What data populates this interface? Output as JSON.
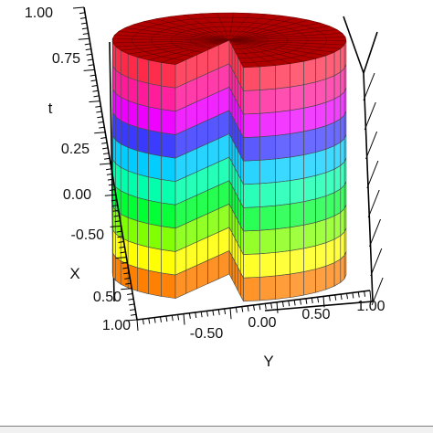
{
  "chart_data": {
    "type": "surface3d",
    "title": "",
    "shape": "cylinder with a wedge cut out, colored by height t",
    "axes": {
      "x": {
        "label": "X",
        "ticks": [
          "0.50",
          "1.00"
        ]
      },
      "y": {
        "label": "Y",
        "ticks": [
          "-0.50",
          "0.00",
          "0.50",
          "1.00"
        ]
      },
      "t": {
        "label": "t",
        "ticks": [
          "-0.50",
          "0.00",
          "0.25",
          "0.75",
          "1.00"
        ]
      }
    },
    "t_range": [
      -1.0,
      1.0
    ],
    "radius": 1.0,
    "wedge_removed_deg": 60,
    "bands": [
      {
        "t_from": -1.0,
        "t_to": -0.8,
        "color": "#ff7f00"
      },
      {
        "t_from": -0.8,
        "t_to": -0.6,
        "color": "#ffff00"
      },
      {
        "t_from": -0.6,
        "t_to": -0.4,
        "color": "#7fff00"
      },
      {
        "t_from": -0.4,
        "t_to": -0.2,
        "color": "#00ff33"
      },
      {
        "t_from": -0.2,
        "t_to": 0.0,
        "color": "#00ffaa"
      },
      {
        "t_from": 0.0,
        "t_to": 0.2,
        "color": "#00ccff"
      },
      {
        "t_from": 0.2,
        "t_to": 0.4,
        "color": "#3a3aff"
      },
      {
        "t_from": 0.4,
        "t_to": 0.6,
        "color": "#ee00ff"
      },
      {
        "t_from": 0.6,
        "t_to": 0.8,
        "color": "#ff1a9a"
      },
      {
        "t_from": 0.8,
        "t_to": 1.0,
        "color": "#ff2a4a"
      }
    ],
    "top_color": "#b00000",
    "grid_color": "#4a4a4a"
  }
}
